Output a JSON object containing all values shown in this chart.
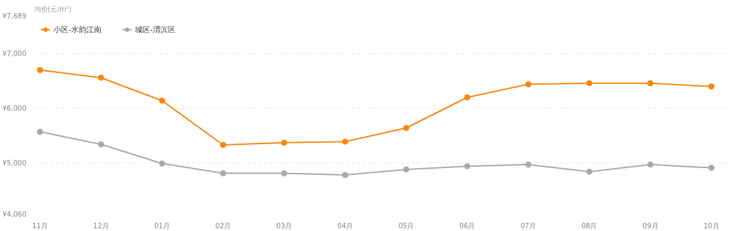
{
  "chart_data": {
    "type": "line",
    "ylabel": "均价(元/m²)",
    "categories": [
      "11月",
      "12月",
      "01月",
      "02月",
      "03月",
      "04月",
      "05月",
      "06月",
      "07月",
      "08月",
      "09月",
      "10月"
    ],
    "series": [
      {
        "name": "小区-水韵江南",
        "color": "#f5870f",
        "values": [
          6700,
          6560,
          6140,
          5330,
          5370,
          5390,
          5640,
          6200,
          6440,
          6460,
          6460,
          6400
        ]
      },
      {
        "name": "城区-渭滨区",
        "color": "#a9a9ab",
        "values": [
          5570,
          5340,
          4990,
          4810,
          4810,
          4780,
          4880,
          4940,
          4970,
          4840,
          4970,
          4910
        ]
      }
    ],
    "ylim": [
      4060,
      7689
    ],
    "yticks": [
      {
        "value": 4060,
        "label": "¥4,060"
      },
      {
        "value": 5000,
        "label": "¥5,000"
      },
      {
        "value": 6000,
        "label": "¥6,000"
      },
      {
        "value": 7000,
        "label": "¥7,000"
      },
      {
        "value": 7689,
        "label": "¥7,689"
      }
    ],
    "grid": "y",
    "legend": "top left",
    "marker": "circle",
    "line_style": "solid"
  }
}
